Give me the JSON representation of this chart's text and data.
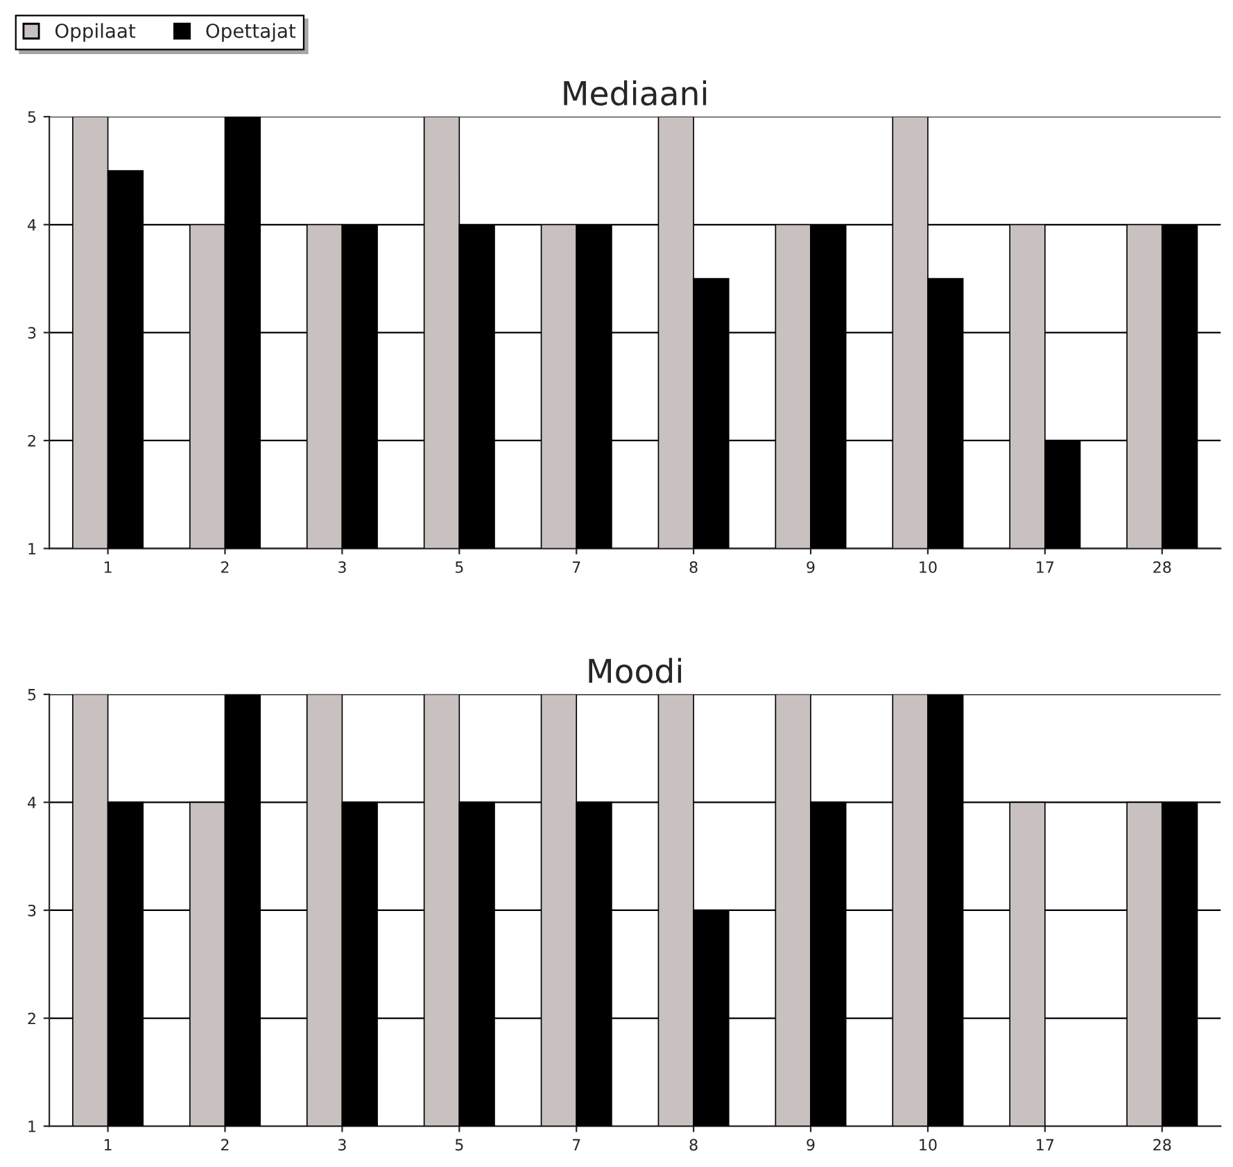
{
  "chart_data": [
    {
      "type": "bar",
      "title": "Mediaani",
      "categories": [
        "1",
        "2",
        "3",
        "5",
        "7",
        "8",
        "9",
        "10",
        "17",
        "28"
      ],
      "series": [
        {
          "name": "Oppilaat",
          "color": "#c9c0c0",
          "values": [
            5,
            4,
            4,
            5,
            4,
            5,
            4,
            5,
            4,
            4
          ]
        },
        {
          "name": "Opettajat",
          "color": "#000000",
          "values": [
            4.5,
            5,
            4,
            4,
            4,
            3.5,
            4,
            3.5,
            2,
            4
          ]
        }
      ],
      "ylim": [
        1,
        5
      ],
      "yticks": [
        1,
        2,
        3,
        4,
        5
      ],
      "grid": "y",
      "legend": "top left"
    },
    {
      "type": "bar",
      "title": "Moodi",
      "categories": [
        "1",
        "2",
        "3",
        "5",
        "7",
        "8",
        "9",
        "10",
        "17",
        "28"
      ],
      "series": [
        {
          "name": "Oppilaat",
          "color": "#c9c0c0",
          "values": [
            5,
            4,
            5,
            5,
            5,
            5,
            5,
            5,
            4,
            4
          ]
        },
        {
          "name": "Opettajat",
          "color": "#000000",
          "values": [
            4,
            5,
            4,
            4,
            4,
            3,
            4,
            5,
            null,
            4
          ]
        }
      ],
      "ylim": [
        1,
        5
      ],
      "yticks": [
        1,
        2,
        3,
        4,
        5
      ],
      "grid": "y"
    }
  ]
}
